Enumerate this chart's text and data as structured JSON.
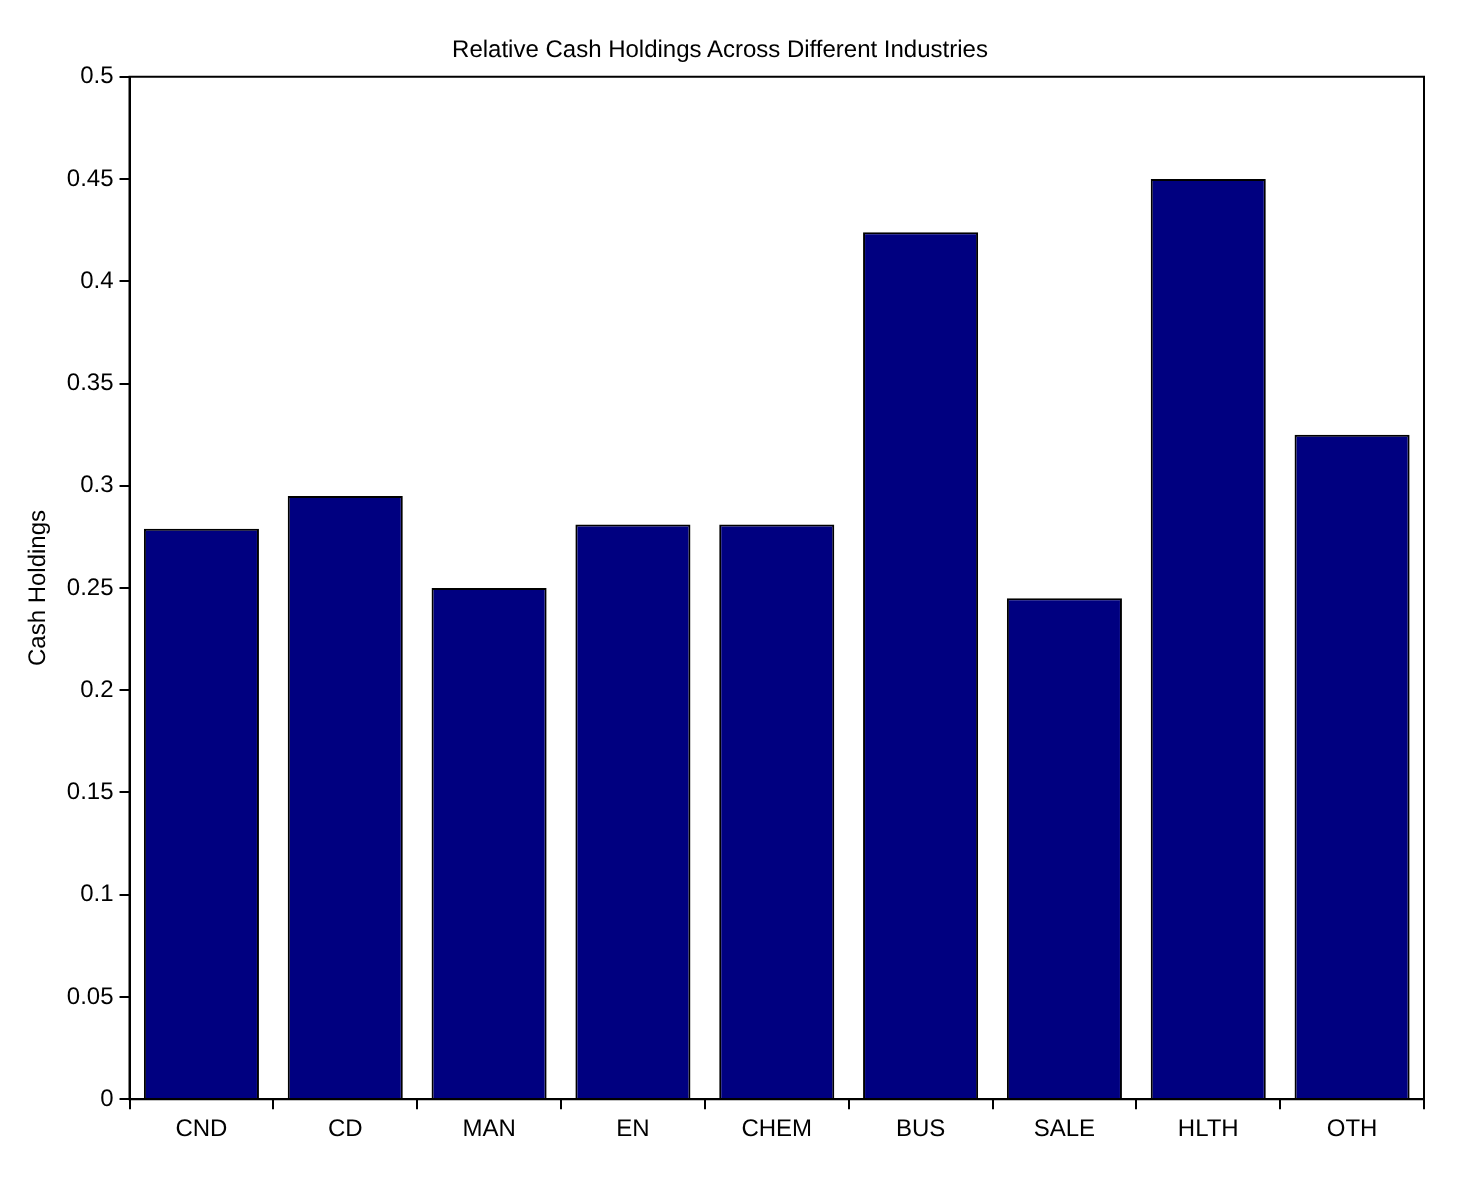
{
  "chart_data": {
    "type": "bar",
    "title": "Relative Cash Holdings Across Different Industries",
    "ylabel": "Cash Holdings",
    "categories": [
      "CND",
      "CD",
      "MAN",
      "EN",
      "CHEM",
      "BUS",
      "SALE",
      "HLTH",
      "OTH"
    ],
    "values": [
      0.279,
      0.295,
      0.25,
      0.281,
      0.281,
      0.424,
      0.245,
      0.45,
      0.325
    ],
    "color": "#000080",
    "ylim": [
      0,
      0.5
    ],
    "yticks": [
      0,
      0.05,
      0.1,
      0.15,
      0.2,
      0.25,
      0.3,
      0.35,
      0.4,
      0.45,
      0.5
    ],
    "grid": false,
    "legend": false
  }
}
